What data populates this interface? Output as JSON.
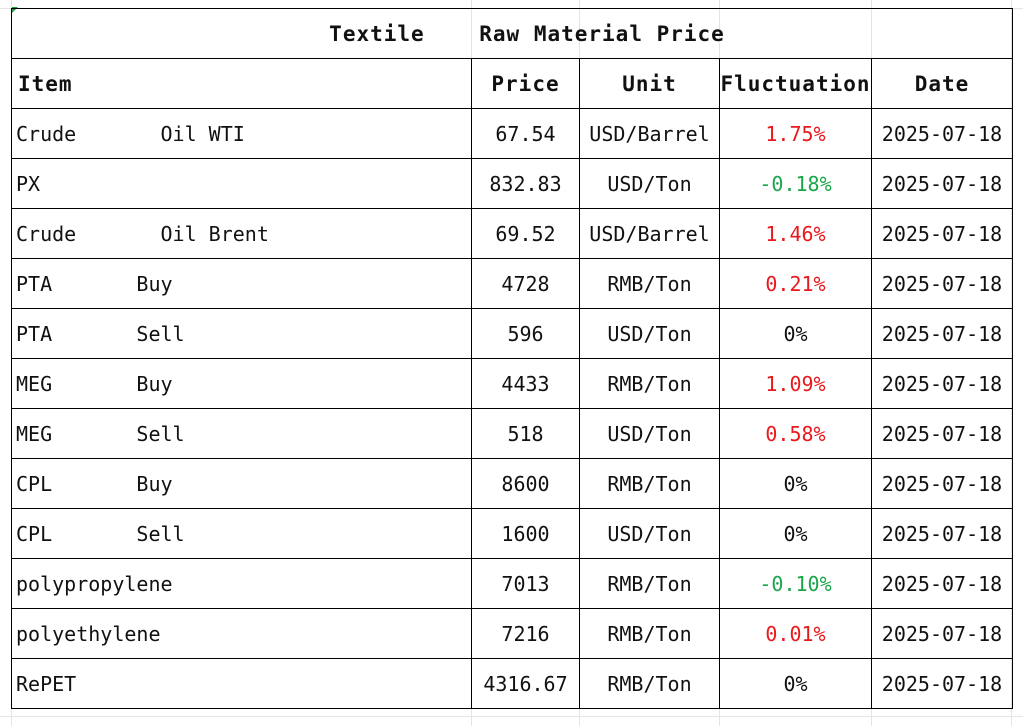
{
  "title": "Textile    Raw Material Price",
  "columns": [
    "Item",
    "Price",
    "Unit",
    "Fluctuation",
    "Date"
  ],
  "colors": {
    "increase": "#e8191c",
    "decrease": "#1aa64a",
    "unchanged": "#111111",
    "sheet_corner": "#1f9d3a"
  },
  "rows": [
    {
      "item": "Crude       Oil WTI",
      "price": "67.54",
      "unit": "USD/Barrel",
      "fluctuation": "1.75%",
      "trend": "up",
      "date": "2025-07-18"
    },
    {
      "item": "PX",
      "price": "832.83",
      "unit": "USD/Ton",
      "fluctuation": "-0.18%",
      "trend": "down",
      "date": "2025-07-18"
    },
    {
      "item": "Crude       Oil Brent",
      "price": "69.52",
      "unit": "USD/Barrel",
      "fluctuation": "1.46%",
      "trend": "up",
      "date": "2025-07-18"
    },
    {
      "item": "PTA       Buy",
      "price": "4728",
      "unit": "RMB/Ton",
      "fluctuation": "0.21%",
      "trend": "up",
      "date": "2025-07-18"
    },
    {
      "item": "PTA       Sell",
      "price": "596",
      "unit": "USD/Ton",
      "fluctuation": "0%",
      "trend": "flat",
      "date": "2025-07-18"
    },
    {
      "item": "MEG       Buy",
      "price": "4433",
      "unit": "RMB/Ton",
      "fluctuation": "1.09%",
      "trend": "up",
      "date": "2025-07-18"
    },
    {
      "item": "MEG       Sell",
      "price": "518",
      "unit": "USD/Ton",
      "fluctuation": "0.58%",
      "trend": "up",
      "date": "2025-07-18"
    },
    {
      "item": "CPL       Buy",
      "price": "8600",
      "unit": "RMB/Ton",
      "fluctuation": "0%",
      "trend": "flat",
      "date": "2025-07-18"
    },
    {
      "item": "CPL       Sell",
      "price": "1600",
      "unit": "USD/Ton",
      "fluctuation": "0%",
      "trend": "flat",
      "date": "2025-07-18"
    },
    {
      "item": "polypropylene",
      "price": "7013",
      "unit": "RMB/Ton",
      "fluctuation": "-0.10%",
      "trend": "down",
      "date": "2025-07-18"
    },
    {
      "item": "polyethylene",
      "price": "7216",
      "unit": "RMB/Ton",
      "fluctuation": "0.01%",
      "trend": "up",
      "date": "2025-07-18"
    },
    {
      "item": "RePET",
      "price": "4316.67",
      "unit": "RMB/Ton",
      "fluctuation": "0%",
      "trend": "flat",
      "date": "2025-07-18"
    }
  ]
}
